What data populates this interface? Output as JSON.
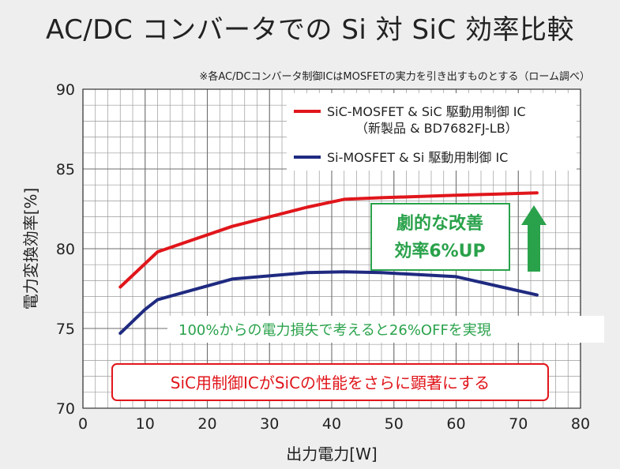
{
  "title": "AC/DC コンバータでの Si 対 SiC  効率比較",
  "note": "※各AC/DCコンバータ制御ICはMOSFETの実力を引き出すものとする（ローム調べ）",
  "colors": {
    "background": "#eeeeee",
    "grid": "#9a9a9a",
    "sic_line": "#e0161b",
    "si_line": "#1f2a80",
    "accent_green": "#2aa24b",
    "callout_red": "#e0161b"
  },
  "annotations": {
    "improvement_line1": "劇的な改善",
    "improvement_line2": "効率6%UP",
    "loss_reduction": "100%からの電力損失で考えると26%OFFを実現",
    "sic_control": "SiC用制御ICがSiCの性能をさらに顕著にする"
  },
  "chart_data": {
    "type": "line",
    "title": "AC/DC コンバータでの Si 対 SiC  効率比較",
    "xlabel": "出力電力[W]",
    "ylabel": "電力変換効率[%]",
    "xlim": [
      0,
      80
    ],
    "ylim": [
      70,
      90
    ],
    "xticks": [
      0,
      10,
      20,
      30,
      40,
      50,
      60,
      70,
      80
    ],
    "yticks": [
      70,
      75,
      80,
      85,
      90
    ],
    "grid": true,
    "legend_position": "top-right",
    "series": [
      {
        "name": "SiC-MOSFET & SiC 駆動用制御 IC",
        "name_line2": "（新製品 & BD7682FJ-LB）",
        "color": "#e0161b",
        "x": [
          6,
          12,
          24,
          36,
          42,
          48,
          60,
          73
        ],
        "y": [
          77.6,
          79.8,
          81.4,
          82.6,
          83.1,
          83.2,
          83.35,
          83.5
        ]
      },
      {
        "name": "Si-MOSFET & Si 駆動用制御 IC",
        "color": "#1f2a80",
        "x": [
          6,
          10,
          12,
          24,
          36,
          42,
          48,
          60,
          73
        ],
        "y": [
          74.7,
          76.2,
          76.8,
          78.1,
          78.5,
          78.55,
          78.5,
          78.25,
          77.1
        ]
      }
    ]
  }
}
